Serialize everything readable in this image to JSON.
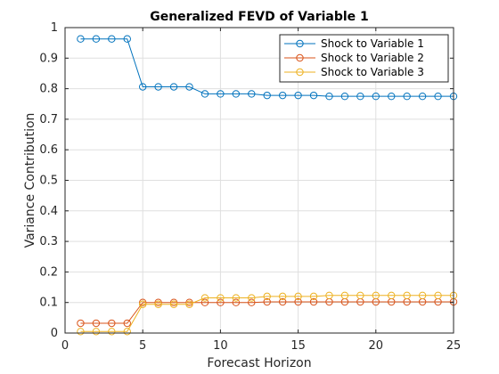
{
  "chart_data": {
    "type": "line",
    "title": "Generalized FEVD of Variable 1",
    "xlabel": "Forecast Horizon",
    "ylabel": "Variance Contribution",
    "xlim": [
      0,
      25
    ],
    "ylim": [
      0,
      1
    ],
    "xticks": [
      "0",
      "5",
      "10",
      "15",
      "20",
      "25"
    ],
    "yticks": [
      "0",
      "0.1",
      "0.2",
      "0.3",
      "0.4",
      "0.5",
      "0.6",
      "0.7",
      "0.8",
      "0.9",
      "1"
    ],
    "grid": true,
    "legend_position": "top-right",
    "x": [
      1,
      2,
      3,
      4,
      5,
      6,
      7,
      8,
      9,
      10,
      11,
      12,
      13,
      14,
      15,
      16,
      17,
      18,
      19,
      20,
      21,
      22,
      23,
      24,
      25
    ],
    "series": [
      {
        "name": "Shock to Variable 1",
        "color": "#0072BD",
        "values": [
          0.963,
          0.963,
          0.963,
          0.963,
          0.806,
          0.806,
          0.806,
          0.806,
          0.783,
          0.783,
          0.783,
          0.783,
          0.778,
          0.778,
          0.778,
          0.778,
          0.775,
          0.775,
          0.775,
          0.775,
          0.775,
          0.775,
          0.775,
          0.775,
          0.775
        ]
      },
      {
        "name": "Shock to Variable 2",
        "color": "#D95319",
        "values": [
          0.032,
          0.032,
          0.032,
          0.032,
          0.1,
          0.1,
          0.1,
          0.1,
          0.1,
          0.1,
          0.1,
          0.1,
          0.102,
          0.102,
          0.102,
          0.102,
          0.102,
          0.102,
          0.102,
          0.102,
          0.102,
          0.102,
          0.102,
          0.102,
          0.102
        ]
      },
      {
        "name": "Shock to Variable 3",
        "color": "#EDB120",
        "values": [
          0.005,
          0.005,
          0.005,
          0.005,
          0.094,
          0.094,
          0.094,
          0.094,
          0.115,
          0.115,
          0.115,
          0.115,
          0.12,
          0.12,
          0.12,
          0.12,
          0.123,
          0.123,
          0.123,
          0.123,
          0.123,
          0.123,
          0.123,
          0.123,
          0.123
        ]
      }
    ]
  }
}
